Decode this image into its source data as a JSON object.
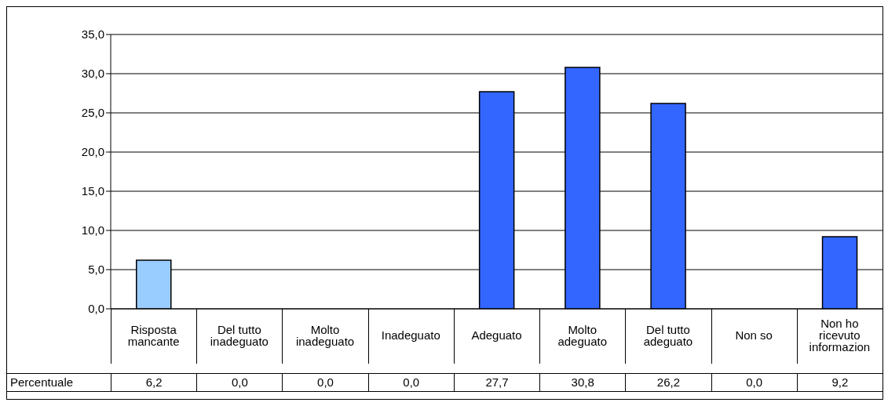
{
  "chart_data": {
    "type": "bar",
    "categories": [
      "Risposta mancante",
      "Del tutto inadeguato",
      "Molto inadeguato",
      "Inadeguato",
      "Adeguato",
      "Molto adeguato",
      "Del tutto adeguato",
      "Non so",
      "Non ho ricevuto informazion"
    ],
    "series": [
      {
        "name": "Percentuale",
        "colors": [
          "#99ccff",
          "#3366ff",
          "#3366ff",
          "#3366ff",
          "#3366ff",
          "#3366ff",
          "#3366ff",
          "#3366ff",
          "#3366ff"
        ],
        "values": [
          6.2,
          0.0,
          0.0,
          0.0,
          27.7,
          30.8,
          26.2,
          0.0,
          9.2
        ],
        "value_labels": [
          "6,2",
          "0,0",
          "0,0",
          "0,0",
          "27,7",
          "30,8",
          "26,2",
          "0,0",
          "9,2"
        ]
      }
    ],
    "ylim": [
      0,
      35
    ],
    "yticks": [
      {
        "value": 0,
        "label": "0,0"
      },
      {
        "value": 5,
        "label": "5,0"
      },
      {
        "value": 10,
        "label": "10,0"
      },
      {
        "value": 15,
        "label": "15,0"
      },
      {
        "value": 20,
        "label": "20,0"
      },
      {
        "value": 25,
        "label": "25,0"
      },
      {
        "value": 30,
        "label": "30,0"
      },
      {
        "value": 35,
        "label": "35,0"
      }
    ],
    "grid": "y"
  }
}
